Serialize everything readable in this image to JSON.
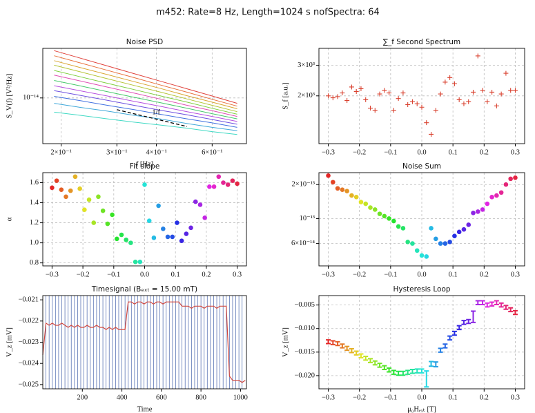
{
  "title": "m452: Rate=8 Hz, Length=1024 s nofSpectra: 64",
  "chart_data": [
    {
      "type": "line",
      "title": "Noise PSD",
      "xlabel": "f [Hz]",
      "ylabel": "S_V(f) [V²/Hz]",
      "xlog": true,
      "ylog": true,
      "grid": true,
      "xlim": [
        0.175,
        0.77
      ],
      "ylim": [
        2.5e-15,
        4.5e-14
      ],
      "xticks": [
        {
          "value": 0.2,
          "label": "2×10⁻¹"
        },
        {
          "value": 0.3,
          "label": "3×10⁻¹"
        },
        {
          "value": 0.4,
          "label": "4×10⁻¹"
        },
        {
          "value": 0.6,
          "label": "6×10⁻¹"
        }
      ],
      "yticks": [
        {
          "value": 1e-14,
          "label": "10⁻¹⁴"
        }
      ],
      "x": [
        0.19,
        0.23,
        0.28,
        0.34,
        0.41,
        0.5,
        0.6,
        0.72
      ],
      "series": [
        {
          "color": "#e0413a",
          "values": [
            4.2e-14,
            3.34e-14,
            2.64e-14,
            2.09e-14,
            1.67e-14,
            1.32e-14,
            1.06e-14,
            8.5e-15
          ]
        },
        {
          "color": "#e8703a",
          "values": [
            3.6e-14,
            2.89e-14,
            2.31e-14,
            1.85e-14,
            1.49e-14,
            1.19e-14,
            9.6e-15,
            7.8e-15
          ]
        },
        {
          "color": "#d9a531",
          "values": [
            3.1e-14,
            2.51e-14,
            2.03e-14,
            1.64e-14,
            1.34e-14,
            1.07e-14,
            8.8e-15,
            7.2e-15
          ]
        },
        {
          "color": "#b5c436",
          "values": [
            2.7e-14,
            2.21e-14,
            1.79e-14,
            1.46e-14,
            1.2e-14,
            9.7e-15,
            8e-15,
            6.6e-15
          ]
        },
        {
          "color": "#7fcf3e",
          "values": [
            2.3e-14,
            1.9e-14,
            1.56e-14,
            1.29e-14,
            1.07e-14,
            8.8e-15,
            7.3e-15,
            6.1e-15
          ]
        },
        {
          "color": "#e04fb5",
          "values": [
            2e-14,
            1.67e-14,
            1.39e-14,
            1.16e-14,
            9.7e-15,
            8e-15,
            6.8e-15,
            5.7e-15
          ]
        },
        {
          "color": "#45c96a",
          "values": [
            1.7e-14,
            1.44e-14,
            1.21e-14,
            1.02e-14,
            8.7e-15,
            7.3e-15,
            6.2e-15,
            5.3e-15
          ]
        },
        {
          "color": "#b54fe0",
          "values": [
            1.45e-14,
            1.24e-14,
            1.06e-14,
            9e-15,
            7.8e-15,
            6.6e-15,
            5.7e-15,
            4.9e-15
          ]
        },
        {
          "color": "#6d4fe0",
          "values": [
            1.25e-14,
            1.08e-14,
            9.3e-15,
            8e-15,
            6.9e-15,
            6e-15,
            5.2e-15,
            4.5e-15
          ]
        },
        {
          "color": "#3f6fe0",
          "values": [
            1.05e-14,
            9.2e-15,
            8e-15,
            7e-15,
            6.1e-15,
            5.3e-15,
            4.7e-15,
            4.1e-15
          ]
        },
        {
          "color": "#3fa8d9",
          "values": [
            8.5e-15,
            7.5e-15,
            6.7e-15,
            5.9e-15,
            5.3e-15,
            4.6e-15,
            4.1e-15,
            3.7e-15
          ]
        },
        {
          "color": "#3fd9c4",
          "values": [
            6.5e-15,
            5.9e-15,
            5.3e-15,
            4.8e-15,
            4.4e-15,
            4e-15,
            3.6e-15,
            3.3e-15
          ]
        }
      ],
      "annotation": {
        "text": "1/f",
        "x": [
          0.3,
          0.5
        ],
        "y": [
          7e-15,
          4.2e-15
        ]
      }
    },
    {
      "type": "scatter",
      "title": "∑_f Second Spectrum",
      "ylabel": "S_f [a.u.]",
      "ylog": true,
      "grid": true,
      "marker": "+",
      "color": "#d9412f",
      "xlim": [
        -0.33,
        0.33
      ],
      "ylim": [
        1060,
        3760
      ],
      "xticks": [
        {
          "value": -0.3,
          "label": "−0.3"
        },
        {
          "value": -0.2,
          "label": "−0.2"
        },
        {
          "value": -0.1,
          "label": "−0.1"
        },
        {
          "value": 0,
          "label": "0.0"
        },
        0.1,
        0.2,
        0.3
      ],
      "yticks": [
        {
          "value": 2000,
          "label": "2×10³"
        },
        {
          "value": 3000,
          "label": "3×10³"
        }
      ],
      "x": [
        -0.3,
        -0.285,
        -0.27,
        -0.255,
        -0.24,
        -0.225,
        -0.21,
        -0.195,
        -0.18,
        -0.165,
        -0.15,
        -0.135,
        -0.12,
        -0.105,
        -0.09,
        -0.075,
        -0.06,
        -0.045,
        -0.03,
        -0.015,
        0,
        0.015,
        0.03,
        0.045,
        0.06,
        0.075,
        0.09,
        0.105,
        0.12,
        0.135,
        0.15,
        0.165,
        0.18,
        0.195,
        0.21,
        0.225,
        0.24,
        0.255,
        0.27,
        0.285,
        0.3
      ],
      "values": [
        2000,
        1950,
        1980,
        2080,
        1880,
        2250,
        2120,
        2200,
        1900,
        1700,
        1650,
        2050,
        2150,
        2080,
        1650,
        1930,
        2080,
        1780,
        1850,
        1800,
        1720,
        1400,
        1200,
        1650,
        2050,
        2400,
        2550,
        2350,
        1900,
        1800,
        1850,
        2100,
        3400,
        2150,
        1850,
        2100,
        1750,
        2050,
        2700,
        2150,
        2150
      ]
    },
    {
      "type": "scatter",
      "title": "Fit slope",
      "ylabel": "α",
      "grid": true,
      "marker": "o",
      "colormap": "hsv",
      "xlim": [
        -0.33,
        0.33
      ],
      "ylim": [
        0.77,
        1.7
      ],
      "xticks": [
        {
          "value": -0.3,
          "label": "−0.3"
        },
        {
          "value": -0.2,
          "label": "−0.2"
        },
        {
          "value": -0.1,
          "label": "−0.1"
        },
        {
          "value": 0,
          "label": "0.0"
        },
        0.1,
        0.2,
        0.3
      ],
      "yticks": [
        0.8,
        {
          "value": 1,
          "label": "1.0"
        },
        1.2,
        1.4,
        1.6
      ],
      "x": [
        -0.3,
        -0.285,
        -0.27,
        -0.255,
        -0.24,
        -0.225,
        -0.21,
        -0.195,
        -0.18,
        -0.165,
        -0.15,
        -0.135,
        -0.12,
        -0.105,
        -0.09,
        -0.075,
        -0.06,
        -0.045,
        -0.03,
        -0.015,
        0,
        0.015,
        0.03,
        0.045,
        0.06,
        0.075,
        0.09,
        0.105,
        0.12,
        0.135,
        0.15,
        0.165,
        0.18,
        0.195,
        0.21,
        0.225,
        0.24,
        0.255,
        0.27,
        0.285,
        0.3
      ],
      "values": [
        1.55,
        1.62,
        1.53,
        1.46,
        1.52,
        1.66,
        1.54,
        1.33,
        1.43,
        1.2,
        1.46,
        1.32,
        1.19,
        1.28,
        1.04,
        1.08,
        1.03,
        1.0,
        0.81,
        0.81,
        1.58,
        1.22,
        1.05,
        1.37,
        1.14,
        1.06,
        1.06,
        1.2,
        1.02,
        1.09,
        1.15,
        1.41,
        1.38,
        1.25,
        1.56,
        1.56,
        1.66,
        1.6,
        1.58,
        1.62,
        1.59
      ]
    },
    {
      "type": "scatter",
      "title": "Noise Sum",
      "ylog": true,
      "grid": true,
      "marker": "o",
      "colormap": "hsv",
      "xlim": [
        -0.33,
        0.33
      ],
      "ylim": [
        3.8e-14,
        2.55e-13
      ],
      "xticks": [
        {
          "value": -0.3,
          "label": "−0.3"
        },
        {
          "value": -0.2,
          "label": "−0.2"
        },
        {
          "value": -0.1,
          "label": "−0.1"
        },
        {
          "value": 0,
          "label": "0.0"
        },
        0.1,
        0.2,
        0.3
      ],
      "yticks": [
        {
          "value": 6e-14,
          "label": "6×10⁻¹⁴"
        },
        {
          "value": 1e-13,
          "label": "10⁻¹³"
        },
        {
          "value": 2e-13,
          "label": "2×10⁻¹³"
        }
      ],
      "x": [
        -0.3,
        -0.285,
        -0.27,
        -0.255,
        -0.24,
        -0.225,
        -0.21,
        -0.195,
        -0.18,
        -0.165,
        -0.15,
        -0.135,
        -0.12,
        -0.105,
        -0.09,
        -0.075,
        -0.06,
        -0.045,
        -0.03,
        -0.015,
        0,
        0.015,
        0.03,
        0.045,
        0.06,
        0.075,
        0.09,
        0.105,
        0.12,
        0.135,
        0.15,
        0.165,
        0.18,
        0.195,
        0.21,
        0.225,
        0.24,
        0.255,
        0.27,
        0.285,
        0.3
      ],
      "values": [
        2.4e-13,
        2.1e-13,
        1.85e-13,
        1.8e-13,
        1.75e-13,
        1.6e-13,
        1.55e-13,
        1.4e-13,
        1.35e-13,
        1.25e-13,
        1.2e-13,
        1.1e-13,
        1.05e-13,
        1e-13,
        9.5e-14,
        8.5e-14,
        8.2e-14,
        6.2e-14,
        6e-14,
        5.2e-14,
        4.7e-14,
        4.6e-14,
        8.2e-14,
        6.6e-14,
        6e-14,
        6e-14,
        6.2e-14,
        7e-14,
        7.6e-14,
        8e-14,
        8.8e-14,
        1.12e-13,
        1.15e-13,
        1.2e-13,
        1.35e-13,
        1.55e-13,
        1.6e-13,
        1.7e-13,
        2e-13,
        2.25e-13,
        2.3e-13
      ]
    },
    {
      "type": "line",
      "title": "Timesignal (Bₑₓₜ = 15.00 mT)",
      "xlabel": "Time",
      "ylabel": "V_z [mV]",
      "grid": false,
      "color": "#d0473f",
      "vline_color": "#5a74b4",
      "xlim": [
        0,
        1030
      ],
      "ylim": [
        -0.0252,
        -0.0208
      ],
      "xticks": [
        200,
        400,
        600,
        800,
        1000
      ],
      "yticks": [
        {
          "value": -0.025,
          "label": "−0.025"
        },
        {
          "value": -0.024,
          "label": "−0.024"
        },
        {
          "value": -0.023,
          "label": "−0.023"
        },
        {
          "value": -0.022,
          "label": "−0.022"
        },
        {
          "value": -0.021,
          "label": "−0.021"
        }
      ],
      "x": [
        0,
        16,
        32,
        48,
        64,
        80,
        96,
        112,
        128,
        144,
        160,
        176,
        192,
        208,
        224,
        240,
        256,
        272,
        288,
        304,
        320,
        336,
        352,
        368,
        384,
        400,
        416,
        432,
        448,
        464,
        480,
        496,
        512,
        528,
        544,
        560,
        576,
        592,
        608,
        624,
        640,
        656,
        672,
        688,
        704,
        720,
        736,
        752,
        768,
        784,
        800,
        816,
        832,
        848,
        864,
        880,
        896,
        912,
        928,
        944,
        960,
        976,
        992,
        1008,
        1024
      ],
      "values": [
        -0.0236,
        -0.0221,
        -0.0222,
        -0.0221,
        -0.0222,
        -0.0222,
        -0.0221,
        -0.0222,
        -0.0223,
        -0.0222,
        -0.0223,
        -0.0222,
        -0.0223,
        -0.0223,
        -0.0222,
        -0.0223,
        -0.0223,
        -0.0222,
        -0.0223,
        -0.0223,
        -0.0224,
        -0.0223,
        -0.0224,
        -0.0223,
        -0.0224,
        -0.0224,
        -0.0224,
        -0.0211,
        -0.0211,
        -0.0212,
        -0.0211,
        -0.0211,
        -0.0212,
        -0.0211,
        -0.0211,
        -0.0212,
        -0.0211,
        -0.0211,
        -0.0212,
        -0.0211,
        -0.0211,
        -0.0211,
        -0.0211,
        -0.0211,
        -0.0213,
        -0.0213,
        -0.0213,
        -0.0214,
        -0.0213,
        -0.0213,
        -0.0213,
        -0.0214,
        -0.0213,
        -0.0213,
        -0.0213,
        -0.0214,
        -0.0213,
        -0.0213,
        -0.0213,
        -0.0246,
        -0.0248,
        -0.0248,
        -0.0248,
        -0.0249,
        -0.0248
      ],
      "vlines": [
        16,
        32,
        48,
        64,
        80,
        96,
        112,
        128,
        144,
        160,
        176,
        192,
        208,
        224,
        240,
        256,
        272,
        288,
        304,
        320,
        336,
        352,
        368,
        384,
        400,
        416,
        432,
        448,
        464,
        480,
        496,
        512,
        528,
        544,
        560,
        576,
        592,
        608,
        624,
        640,
        656,
        672,
        688,
        704,
        720,
        736,
        752,
        768,
        784,
        800,
        816,
        832,
        848,
        864,
        880,
        896,
        912,
        928,
        944,
        960,
        976,
        992,
        1008
      ]
    },
    {
      "type": "errorbar",
      "title": "Hysteresis Loop",
      "xlabel": "μ₀Hₑₓₜ [T]",
      "ylabel": "V_z [mV]",
      "grid": true,
      "colormap": "hsv",
      "xlim": [
        -0.33,
        0.33
      ],
      "ylim": [
        -0.0228,
        -0.003
      ],
      "xticks": [
        {
          "value": -0.3,
          "label": "−0.3"
        },
        {
          "value": -0.2,
          "label": "−0.2"
        },
        {
          "value": -0.1,
          "label": "−0.1"
        },
        {
          "value": 0,
          "label": "0.0"
        },
        0.1,
        0.2,
        0.3
      ],
      "yticks": [
        {
          "value": -0.02,
          "label": "−0.020"
        },
        {
          "value": -0.015,
          "label": "−0.015"
        },
        {
          "value": -0.01,
          "label": "−0.010"
        },
        {
          "value": -0.005,
          "label": "−0.005"
        }
      ],
      "x": [
        -0.3,
        -0.285,
        -0.27,
        -0.255,
        -0.24,
        -0.225,
        -0.21,
        -0.195,
        -0.18,
        -0.165,
        -0.15,
        -0.135,
        -0.12,
        -0.105,
        -0.09,
        -0.075,
        -0.06,
        -0.045,
        -0.03,
        -0.015,
        0,
        0.015,
        0.03,
        0.045,
        0.06,
        0.075,
        0.09,
        0.105,
        0.12,
        0.135,
        0.15,
        0.165,
        0.18,
        0.195,
        0.21,
        0.225,
        0.24,
        0.255,
        0.27,
        0.285,
        0.3
      ],
      "values": [
        -0.0128,
        -0.013,
        -0.0132,
        -0.0137,
        -0.0142,
        -0.0147,
        -0.0152,
        -0.0158,
        -0.0163,
        -0.0168,
        -0.0173,
        -0.0178,
        -0.0183,
        -0.0188,
        -0.0193,
        -0.0195,
        -0.0195,
        -0.0193,
        -0.0191,
        -0.019,
        -0.019,
        -0.0207,
        -0.0175,
        -0.0176,
        -0.0146,
        -0.0137,
        -0.012,
        -0.011,
        -0.0098,
        -0.0087,
        -0.0085,
        -0.0075,
        -0.0045,
        -0.0045,
        -0.005,
        -0.0048,
        -0.0045,
        -0.005,
        -0.0055,
        -0.006,
        -0.0066
      ],
      "errors": [
        0.0004,
        0.0004,
        0.0004,
        0.0004,
        0.0004,
        0.0004,
        0.0004,
        0.0004,
        0.0004,
        0.0004,
        0.0004,
        0.0004,
        0.0004,
        0.0004,
        0.0004,
        0.0004,
        0.0004,
        0.0004,
        0.0004,
        0.0004,
        0.0004,
        0.0017,
        0.0005,
        0.0005,
        0.0004,
        0.0004,
        0.0004,
        0.0004,
        0.0004,
        0.0004,
        0.0004,
        0.0012,
        0.0004,
        0.0004,
        0.0004,
        0.0004,
        0.0004,
        0.0004,
        0.0004,
        0.0004,
        0.0004
      ]
    }
  ]
}
